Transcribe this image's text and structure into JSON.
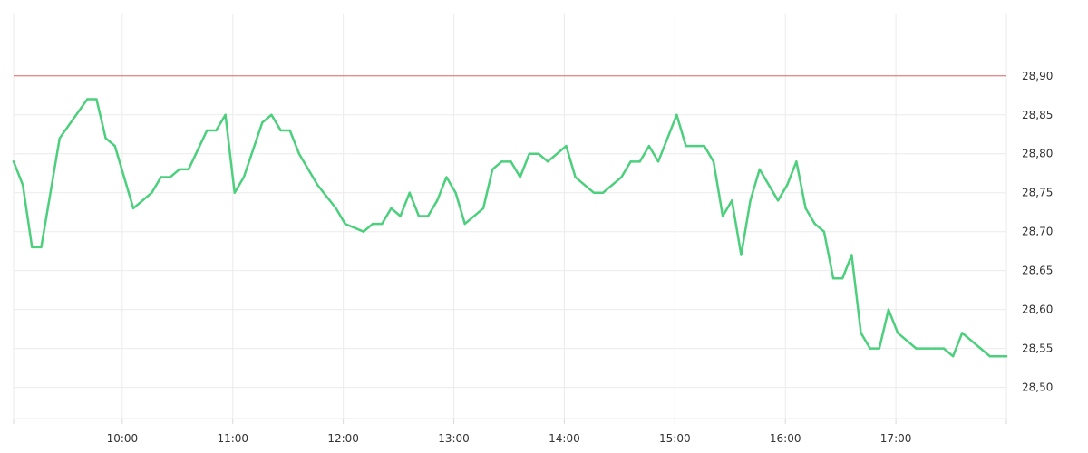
{
  "chart_data": {
    "type": "line",
    "title": "",
    "xlabel": "",
    "ylabel": "",
    "x_range": [
      "09:01",
      "18:00"
    ],
    "ylim": [
      28.46,
      28.98
    ],
    "x_ticks": [
      "10:00",
      "11:00",
      "12:00",
      "13:00",
      "14:00",
      "15:00",
      "16:00",
      "17:00"
    ],
    "y_ticks": [
      "28,50",
      "28,55",
      "28,60",
      "28,65",
      "28,70",
      "28,75",
      "28,80",
      "28,85",
      "28,90"
    ],
    "grid": true,
    "legend": "none",
    "reference_lines": [
      {
        "value": 28.9,
        "color": "#e06666"
      }
    ],
    "series": [
      {
        "color": "#4cd07d",
        "x": [
          "09:01",
          "09:06",
          "09:11",
          "09:16",
          "09:26",
          "09:41",
          "09:46",
          "09:51",
          "09:56",
          "10:06",
          "10:16",
          "10:21",
          "10:26",
          "10:31",
          "10:36",
          "10:46",
          "10:51",
          "10:56",
          "11:01",
          "11:06",
          "11:16",
          "11:21",
          "11:26",
          "11:31",
          "11:36",
          "11:46",
          "11:56",
          "12:01",
          "12:11",
          "12:16",
          "12:21",
          "12:26",
          "12:31",
          "12:36",
          "12:41",
          "12:46",
          "12:51",
          "12:56",
          "13:01",
          "13:06",
          "13:16",
          "13:21",
          "13:26",
          "13:31",
          "13:36",
          "13:41",
          "13:46",
          "13:51",
          "14:01",
          "14:06",
          "14:16",
          "14:21",
          "14:31",
          "14:36",
          "14:41",
          "14:46",
          "14:51",
          "14:56",
          "15:01",
          "15:06",
          "15:16",
          "15:21",
          "15:26",
          "15:31",
          "15:36",
          "15:41",
          "15:46",
          "15:56",
          "16:01",
          "16:06",
          "16:11",
          "16:16",
          "16:21",
          "16:26",
          "16:31",
          "16:36",
          "16:41",
          "16:46",
          "16:51",
          "16:56",
          "17:01",
          "17:11",
          "17:16",
          "17:21",
          "17:26",
          "17:31",
          "17:36",
          "17:46",
          "17:51",
          "17:56",
          "18:00"
        ],
        "y": [
          28.79,
          28.76,
          28.68,
          28.68,
          28.82,
          28.87,
          28.87,
          28.82,
          28.81,
          28.73,
          28.75,
          28.77,
          28.77,
          28.78,
          28.78,
          28.83,
          28.83,
          28.85,
          28.75,
          28.77,
          28.84,
          28.85,
          28.83,
          28.83,
          28.8,
          28.76,
          28.73,
          28.71,
          28.7,
          28.71,
          28.71,
          28.73,
          28.72,
          28.75,
          28.72,
          28.72,
          28.74,
          28.77,
          28.75,
          28.71,
          28.73,
          28.78,
          28.79,
          28.79,
          28.77,
          28.8,
          28.8,
          28.79,
          28.81,
          28.77,
          28.75,
          28.75,
          28.77,
          28.79,
          28.79,
          28.81,
          28.79,
          28.82,
          28.85,
          28.81,
          28.81,
          28.79,
          28.72,
          28.74,
          28.67,
          28.74,
          28.78,
          28.74,
          28.76,
          28.79,
          28.73,
          28.71,
          28.7,
          28.64,
          28.64,
          28.67,
          28.57,
          28.55,
          28.55,
          28.6,
          28.57,
          28.55,
          28.55,
          28.55,
          28.55,
          28.54,
          28.57,
          28.55,
          28.54,
          28.54,
          28.54
        ]
      }
    ]
  }
}
